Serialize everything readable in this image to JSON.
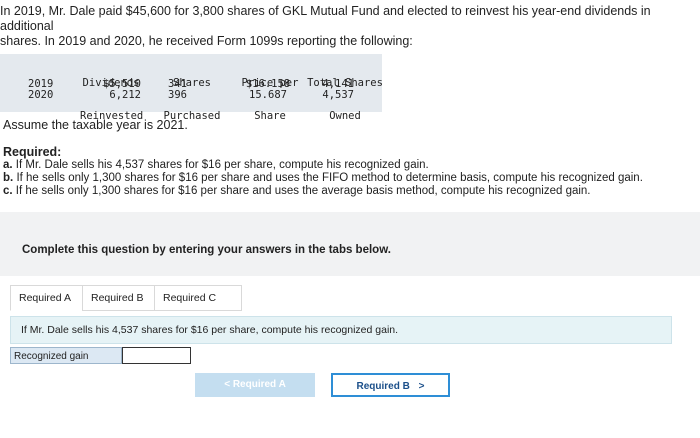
{
  "intro": {
    "line1": "In 2019, Mr. Dale paid $45,600 for 3,800 shares of GKL Mutual Fund and elected to reinvest his year-end dividends in additional",
    "line2": "shares. In 2019 and 2020, he received Form 1099s reporting the following:"
  },
  "table": {
    "headers": {
      "dividends": [
        "Dividends",
        "Reinvested"
      ],
      "shares": [
        "Shares",
        "Purchased"
      ],
      "price": [
        "Price per",
        "Share"
      ],
      "total": [
        "Total Shares",
        "Owned"
      ]
    },
    "rows": [
      {
        "year": "2019",
        "dividends": "$5,510",
        "shares": "341",
        "price": "$16.158",
        "total": "4,141"
      },
      {
        "year": "2020",
        "dividends": "6,212",
        "shares": "396",
        "price": "15.687",
        "total": "4,537"
      }
    ]
  },
  "assume": "Assume the taxable year is 2021.",
  "required": {
    "title": "Required:",
    "items": [
      {
        "letter": "a.",
        "text": "If Mr. Dale sells his 4,537 shares for $16 per share, compute his recognized gain."
      },
      {
        "letter": "b.",
        "text": "If he sells only 1,300 shares for $16 per share and uses the FIFO method to determine basis, compute his recognized gain."
      },
      {
        "letter": "c.",
        "text": "If he sells only 1,300 shares for $16 per share and uses the average basis method, compute his recognized gain."
      }
    ]
  },
  "panel": {
    "text": "Complete this question by entering your answers in the tabs below."
  },
  "tabs": [
    "Required A",
    "Required B",
    "Required C"
  ],
  "question": "If Mr. Dale sells his 4,537 shares for $16 per share, compute his recognized gain.",
  "field": {
    "label": "Recognized gain",
    "value": ""
  },
  "nav": {
    "prev": "Required A",
    "prev_icon": "<",
    "next": "Required B",
    "next_icon": ">"
  }
}
